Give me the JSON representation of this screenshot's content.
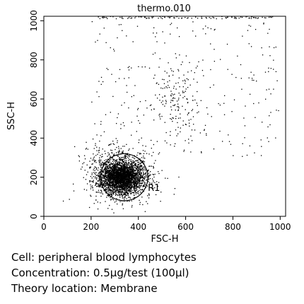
{
  "chart_data": {
    "type": "scatter",
    "title": "thermo.010",
    "xlabel": "FSC-H",
    "ylabel": "SSC-H",
    "xlim": [
      0,
      1023
    ],
    "ylim": [
      0,
      1023
    ],
    "xticks": [
      0,
      200,
      400,
      600,
      800,
      1000
    ],
    "yticks": [
      0,
      200,
      400,
      600,
      800,
      1000
    ],
    "grid": false,
    "point_color": "#000000",
    "clusters": [
      {
        "label": "lymphocyte core",
        "center": [
          330,
          200
        ],
        "spread": [
          45,
          42
        ],
        "count": 2600
      },
      {
        "label": "lymphocyte halo",
        "center": [
          320,
          220
        ],
        "spread": [
          75,
          75
        ],
        "count": 700
      },
      {
        "label": "granular population",
        "center": [
          560,
          570
        ],
        "spread": [
          55,
          110
        ],
        "count": 160
      }
    ],
    "sparse_region": {
      "x": [
        200,
        1000
      ],
      "y": [
        300,
        1000
      ],
      "count": 260
    },
    "top_edge_band": {
      "x": [
        230,
        1000
      ],
      "y": [
        1010,
        1023
      ],
      "count": 110
    },
    "gate": {
      "name": "R1",
      "label_position": [
        440,
        130
      ],
      "center": [
        340,
        200
      ],
      "radius_x": 100,
      "radius_y": 120,
      "rotation_deg": 25
    }
  },
  "captions": {
    "cell": "Cell: peripheral blood lymphocytes",
    "concentration": "Concentration: 0.5µg/test (100µl)",
    "location": "Theory location: Membrane"
  }
}
